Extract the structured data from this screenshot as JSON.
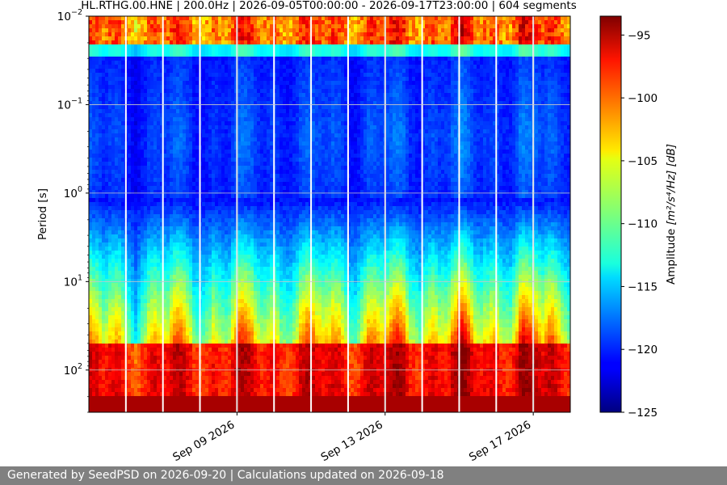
{
  "chart_data": {
    "type": "heatmap",
    "title": "HL.RTHG.00.HNE | 200.0Hz | 2026-09-05T00:00:00 - 2026-09-17T23:00:00 | 604 segments",
    "ylabel": "Period [s]",
    "xlabel": "",
    "y_scale": "log",
    "y_inverted": true,
    "y_range": [
      0.01,
      300
    ],
    "y_ticks": [
      {
        "value": 0.01,
        "base": "10",
        "exp": "−2"
      },
      {
        "value": 0.1,
        "base": "10",
        "exp": "−1"
      },
      {
        "value": 1,
        "base": "10",
        "exp": "0"
      },
      {
        "value": 10,
        "base": "10",
        "exp": "1"
      },
      {
        "value": 100,
        "base": "10",
        "exp": "2"
      }
    ],
    "x_range": [
      "2026-09-05",
      "2026-09-18"
    ],
    "x_ticks": [
      {
        "date": "2026-09-09",
        "label": "Sep 09 2026"
      },
      {
        "date": "2026-09-13",
        "label": "Sep 13 2026"
      },
      {
        "date": "2026-09-17",
        "label": "Sep 17 2026"
      }
    ],
    "gaps": [
      "2026-09-06",
      "2026-09-07",
      "2026-09-08",
      "2026-09-09",
      "2026-09-10",
      "2026-09-11",
      "2026-09-12",
      "2026-09-13",
      "2026-09-14",
      "2026-09-15",
      "2026-09-16",
      "2026-09-17"
    ],
    "grid": true,
    "colormap": "jet",
    "colorbar": {
      "label": "Amplitude",
      "label_unit": "[m²/s⁴/Hz] [dB]",
      "range": [
        -125,
        -93.5
      ],
      "ticks": [
        "−95",
        "−100",
        "−105",
        "−110",
        "−115",
        "−120",
        "−125"
      ]
    }
  },
  "footer": {
    "text": "Generated by SeedPSD on 2026-09-20 | Calculations updated on 2026-09-18"
  }
}
